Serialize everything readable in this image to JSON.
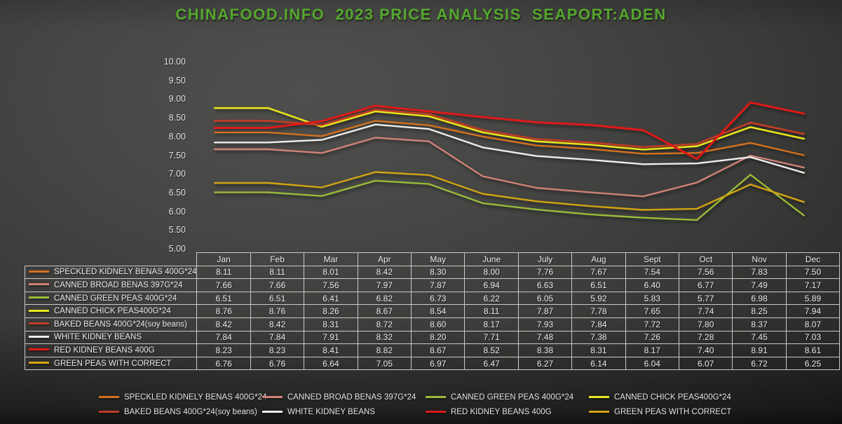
{
  "title": "CHINAFOOD.INFO  2023 PRICE ANALYSIS  SEAPORT:ADEN",
  "title_color": "#55a72e",
  "chart_data": {
    "type": "line",
    "title": "CHINAFOOD.INFO  2023 PRICE ANALYSIS  SEAPORT:ADEN",
    "xlabel": "",
    "ylabel": "",
    "ylim": [
      5.0,
      10.0
    ],
    "ytick_step": 0.5,
    "yticks": [
      "10.00",
      "9.50",
      "9.00",
      "8.50",
      "8.00",
      "7.50",
      "7.00",
      "6.50",
      "6.00",
      "5.50",
      "5.00"
    ],
    "grid": false,
    "legend_position": "bottom",
    "categories": [
      "Jan",
      "Feb",
      "Mar",
      "Apr",
      "May",
      "June",
      "July",
      "Aug",
      "Sept",
      "Oct",
      "Nov",
      "Dec"
    ],
    "series": [
      {
        "name": "SPECKLED KIDNELY BENAS 400G*24",
        "color": "#D4711E",
        "width": 2.4,
        "values": [
          8.11,
          8.11,
          8.01,
          8.42,
          8.3,
          8.0,
          7.76,
          7.67,
          7.54,
          7.56,
          7.83,
          7.5
        ]
      },
      {
        "name": "CANNED BROAD BENAS 397G*24",
        "color": "#CE8276",
        "width": 2.4,
        "values": [
          7.66,
          7.66,
          7.56,
          7.97,
          7.87,
          6.94,
          6.63,
          6.51,
          6.4,
          6.77,
          7.49,
          7.17
        ]
      },
      {
        "name": "CANNED GREEN PEAS 400G*24",
        "color": "#9ABB39",
        "width": 2.4,
        "values": [
          6.51,
          6.51,
          6.41,
          6.82,
          6.73,
          6.22,
          6.05,
          5.92,
          5.83,
          5.77,
          6.98,
          5.89
        ]
      },
      {
        "name": "CANNED CHICK PEAS400G*24",
        "color": "#E9E51D",
        "width": 2.6,
        "values": [
          8.76,
          8.76,
          8.26,
          8.67,
          8.54,
          8.11,
          7.87,
          7.78,
          7.65,
          7.74,
          8.25,
          7.94
        ]
      },
      {
        "name": "BAKED BEANS 400G*24(soy beans)",
        "color": "#BF3D26",
        "width": 2.8,
        "values": [
          8.42,
          8.42,
          8.31,
          8.72,
          8.6,
          8.17,
          7.93,
          7.84,
          7.72,
          7.8,
          8.37,
          8.07
        ]
      },
      {
        "name": "WHITE KIDNEY BEANS",
        "color": "#EDEDED",
        "width": 2.4,
        "values": [
          7.84,
          7.84,
          7.91,
          8.32,
          8.2,
          7.71,
          7.48,
          7.38,
          7.26,
          7.28,
          7.45,
          7.03
        ]
      },
      {
        "name": "RED KIDNEY BEANS 400G",
        "color": "#DE1A17",
        "width": 3.0,
        "values": [
          8.23,
          8.23,
          8.41,
          8.82,
          8.67,
          8.52,
          8.38,
          8.31,
          8.17,
          7.4,
          8.91,
          8.61
        ]
      },
      {
        "name": "GREEN PEAS WITH CORRECT",
        "color": "#D2A411",
        "width": 2.4,
        "values": [
          6.76,
          6.76,
          6.64,
          7.05,
          6.97,
          6.47,
          6.27,
          6.14,
          6.04,
          6.07,
          6.72,
          6.25
        ]
      }
    ]
  }
}
